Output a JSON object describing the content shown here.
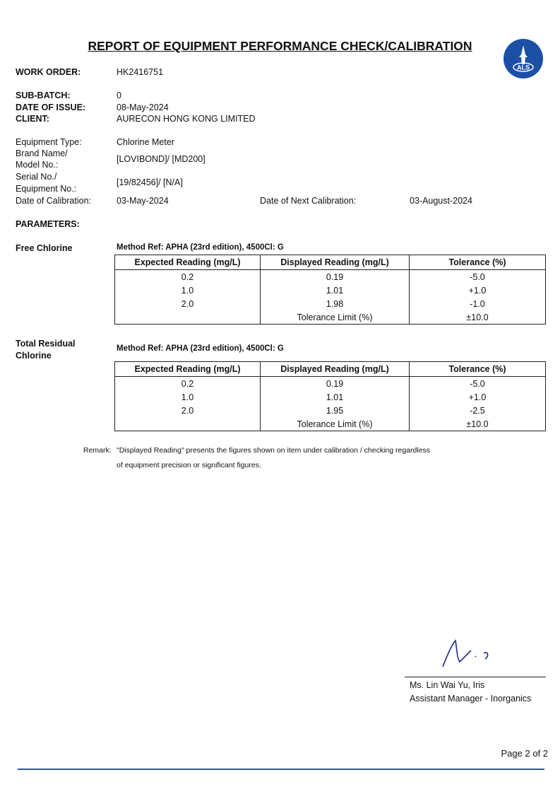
{
  "title": "REPORT OF EQUIPMENT PERFORMANCE CHECK/CALIBRATION",
  "logo": {
    "text": "ALS",
    "color": "#1c4fa6"
  },
  "header": {
    "work_order_label": "WORK ORDER:",
    "work_order": "HK2416751",
    "sub_batch_label": "SUB-BATCH:",
    "sub_batch": "0",
    "date_issue_label": "DATE OF ISSUE:",
    "date_issue": "08-May-2024",
    "client_label": "CLIENT:",
    "client": "AURECON HONG KONG LIMITED"
  },
  "equipment": {
    "type_label": "Equipment Type:",
    "type": "Chlorine Meter",
    "brand_label1": "Brand Name/",
    "brand_label2": "Model No.:",
    "brand": "[LOVIBOND]/ [MD200]",
    "serial_label1": "Serial No./",
    "serial_label2": "Equipment No.:",
    "serial": "[19/82456]/ [N/A]",
    "cal_label": "Date of Calibration:",
    "cal": "03-May-2024",
    "next_label": "Date of Next Calibration:",
    "next": "03-August-2024"
  },
  "parameters_label": "PARAMETERS:",
  "sections": [
    {
      "name1": "Free Chlorine",
      "name2": "",
      "method": "Method Ref: APHA (23rd edition), 4500Cl: G",
      "headers": [
        "Expected Reading (mg/L)",
        "Displayed Reading (mg/L)",
        "Tolerance (%)"
      ],
      "rows": [
        [
          "0.2",
          "0.19",
          "-5.0"
        ],
        [
          "1.0",
          "1.01",
          "+1.0"
        ],
        [
          "2.0",
          "1.98",
          "-1.0"
        ]
      ],
      "limit_label": "Tolerance Limit (%)",
      "limit": "±10.0"
    },
    {
      "name1": "Total Residual",
      "name2": "Chlorine",
      "method": "Method Ref: APHA (23rd edition), 4500Cl: G",
      "headers": [
        "Expected Reading (mg/L)",
        "Displayed Reading (mg/L)",
        "Tolerance (%)"
      ],
      "rows": [
        [
          "0.2",
          "0.19",
          "-5.0"
        ],
        [
          "1.0",
          "1.01",
          "+1.0"
        ],
        [
          "2.0",
          "1.95",
          "-2.5"
        ]
      ],
      "limit_label": "Tolerance Limit (%)",
      "limit": "±10.0"
    }
  ],
  "remark": {
    "label": "Remark:",
    "line1": "\"Displayed Reading\" presents the figures shown on item under calibration / checking regardless",
    "line2": "of equipment precision or significant figures."
  },
  "signatory": {
    "name": "Ms. Lin Wai Yu, Iris",
    "title": "Assistant Manager - Inorganics"
  },
  "footer": {
    "page": "Page 2 of 2",
    "rule_color": "#2a58b0"
  }
}
